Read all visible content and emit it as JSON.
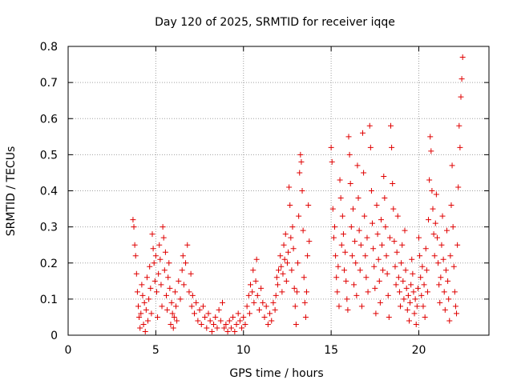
{
  "chart_data": {
    "type": "scatter",
    "title": "Day 120 of 2025, SRMTID for receiver iqqe",
    "xlabel": "GPS time / hours",
    "ylabel": "SRMTID / TECUs",
    "xlim": [
      0,
      24
    ],
    "ylim": [
      0,
      0.8
    ],
    "xticks": [
      0,
      5,
      10,
      15,
      20
    ],
    "yticks": [
      0,
      0.1,
      0.2,
      0.3,
      0.4,
      0.5,
      0.6,
      0.7,
      0.8
    ],
    "xtick_labels": [
      "0",
      "5",
      "10",
      "15",
      "20"
    ],
    "ytick_labels": [
      "0",
      "0.1",
      "0.2",
      "0.3",
      "0.4",
      "0.5",
      "0.6",
      "0.7",
      "0.8"
    ],
    "grid": true,
    "marker": "+",
    "color": "#e00000",
    "series": [
      {
        "name": "SRMTID",
        "points": [
          [
            3.7,
            0.32
          ],
          [
            3.75,
            0.3
          ],
          [
            3.8,
            0.25
          ],
          [
            3.85,
            0.22
          ],
          [
            3.9,
            0.17
          ],
          [
            3.95,
            0.12
          ],
          [
            4.0,
            0.08
          ],
          [
            4.05,
            0.05
          ],
          [
            4.1,
            0.02
          ],
          [
            4.15,
            0.06
          ],
          [
            4.2,
            0.14
          ],
          [
            4.25,
            0.11
          ],
          [
            4.3,
            0.03
          ],
          [
            4.35,
            0.09
          ],
          [
            4.4,
            0.01
          ],
          [
            4.45,
            0.07
          ],
          [
            4.5,
            0.16
          ],
          [
            4.55,
            0.04
          ],
          [
            4.6,
            0.1
          ],
          [
            4.65,
            0.19
          ],
          [
            4.7,
            0.13
          ],
          [
            4.75,
            0.06
          ],
          [
            4.8,
            0.28
          ],
          [
            4.85,
            0.24
          ],
          [
            4.9,
            0.2
          ],
          [
            4.95,
            0.15
          ],
          [
            5.0,
            0.22
          ],
          [
            5.05,
            0.12
          ],
          [
            5.1,
            0.05
          ],
          [
            5.15,
            0.17
          ],
          [
            5.2,
            0.25
          ],
          [
            5.25,
            0.21
          ],
          [
            5.3,
            0.14
          ],
          [
            5.35,
            0.08
          ],
          [
            5.4,
            0.3
          ],
          [
            5.45,
            0.27
          ],
          [
            5.5,
            0.18
          ],
          [
            5.55,
            0.23
          ],
          [
            5.6,
            0.11
          ],
          [
            5.65,
            0.07
          ],
          [
            5.7,
            0.16
          ],
          [
            5.75,
            0.2
          ],
          [
            5.8,
            0.13
          ],
          [
            5.85,
            0.03
          ],
          [
            5.9,
            0.09
          ],
          [
            5.95,
            0.06
          ],
          [
            6.0,
            0.02
          ],
          [
            6.05,
            0.05
          ],
          [
            6.1,
            0.12
          ],
          [
            6.15,
            0.08
          ],
          [
            6.2,
            0.04
          ],
          [
            6.3,
            0.15
          ],
          [
            6.4,
            0.1
          ],
          [
            6.5,
            0.18
          ],
          [
            6.55,
            0.22
          ],
          [
            6.6,
            0.14
          ],
          [
            6.7,
            0.2
          ],
          [
            6.8,
            0.25
          ],
          [
            6.9,
            0.12
          ],
          [
            7.0,
            0.17
          ],
          [
            7.05,
            0.08
          ],
          [
            7.1,
            0.11
          ],
          [
            7.2,
            0.06
          ],
          [
            7.3,
            0.09
          ],
          [
            7.4,
            0.04
          ],
          [
            7.5,
            0.07
          ],
          [
            7.6,
            0.03
          ],
          [
            7.7,
            0.08
          ],
          [
            7.8,
            0.05
          ],
          [
            7.9,
            0.02
          ],
          [
            8.0,
            0.06
          ],
          [
            8.1,
            0.04
          ],
          [
            8.2,
            0.01
          ],
          [
            8.3,
            0.03
          ],
          [
            8.4,
            0.05
          ],
          [
            8.5,
            0.02
          ],
          [
            8.6,
            0.07
          ],
          [
            8.7,
            0.04
          ],
          [
            8.8,
            0.09
          ],
          [
            8.9,
            0.02
          ],
          [
            9.0,
            0.03
          ],
          [
            9.1,
            0.01
          ],
          [
            9.2,
            0.04
          ],
          [
            9.3,
            0.02
          ],
          [
            9.4,
            0.05
          ],
          [
            9.5,
            0.01
          ],
          [
            9.6,
            0.03
          ],
          [
            9.7,
            0.06
          ],
          [
            9.8,
            0.04
          ],
          [
            9.9,
            0.02
          ],
          [
            10.0,
            0.05
          ],
          [
            10.1,
            0.03
          ],
          [
            10.2,
            0.08
          ],
          [
            10.3,
            0.11
          ],
          [
            10.35,
            0.06
          ],
          [
            10.4,
            0.14
          ],
          [
            10.5,
            0.12
          ],
          [
            10.55,
            0.18
          ],
          [
            10.6,
            0.09
          ],
          [
            10.7,
            0.15
          ],
          [
            10.75,
            0.21
          ],
          [
            10.8,
            0.11
          ],
          [
            10.9,
            0.07
          ],
          [
            11.0,
            0.13
          ],
          [
            11.1,
            0.09
          ],
          [
            11.2,
            0.05
          ],
          [
            11.3,
            0.08
          ],
          [
            11.4,
            0.03
          ],
          [
            11.5,
            0.06
          ],
          [
            11.6,
            0.04
          ],
          [
            11.7,
            0.09
          ],
          [
            11.8,
            0.07
          ],
          [
            11.85,
            0.11
          ],
          [
            11.9,
            0.16
          ],
          [
            11.95,
            0.14
          ],
          [
            12.0,
            0.18
          ],
          [
            12.1,
            0.22
          ],
          [
            12.15,
            0.19
          ],
          [
            12.2,
            0.12
          ],
          [
            12.25,
            0.17
          ],
          [
            12.3,
            0.25
          ],
          [
            12.35,
            0.21
          ],
          [
            12.4,
            0.28
          ],
          [
            12.45,
            0.15
          ],
          [
            12.5,
            0.2
          ],
          [
            12.55,
            0.23
          ],
          [
            12.6,
            0.41
          ],
          [
            12.65,
            0.36
          ],
          [
            12.7,
            0.27
          ],
          [
            12.75,
            0.18
          ],
          [
            12.8,
            0.3
          ],
          [
            12.85,
            0.24
          ],
          [
            12.9,
            0.13
          ],
          [
            12.95,
            0.08
          ],
          [
            13.0,
            0.03
          ],
          [
            13.05,
            0.12
          ],
          [
            13.1,
            0.2
          ],
          [
            13.15,
            0.33
          ],
          [
            13.2,
            0.45
          ],
          [
            13.25,
            0.5
          ],
          [
            13.3,
            0.48
          ],
          [
            13.35,
            0.4
          ],
          [
            13.4,
            0.29
          ],
          [
            13.45,
            0.16
          ],
          [
            13.5,
            0.09
          ],
          [
            13.55,
            0.05
          ],
          [
            13.6,
            0.12
          ],
          [
            13.65,
            0.22
          ],
          [
            13.7,
            0.36
          ],
          [
            13.75,
            0.26
          ],
          [
            15.0,
            0.52
          ],
          [
            15.05,
            0.48
          ],
          [
            15.1,
            0.35
          ],
          [
            15.15,
            0.27
          ],
          [
            15.2,
            0.3
          ],
          [
            15.25,
            0.22
          ],
          [
            15.3,
            0.16
          ],
          [
            15.35,
            0.12
          ],
          [
            15.4,
            0.19
          ],
          [
            15.45,
            0.08
          ],
          [
            15.5,
            0.43
          ],
          [
            15.55,
            0.38
          ],
          [
            15.6,
            0.25
          ],
          [
            15.65,
            0.33
          ],
          [
            15.7,
            0.28
          ],
          [
            15.75,
            0.18
          ],
          [
            15.8,
            0.23
          ],
          [
            15.85,
            0.15
          ],
          [
            15.9,
            0.1
          ],
          [
            15.95,
            0.07
          ],
          [
            16.0,
            0.55
          ],
          [
            16.05,
            0.5
          ],
          [
            16.1,
            0.42
          ],
          [
            16.15,
            0.3
          ],
          [
            16.2,
            0.22
          ],
          [
            16.25,
            0.35
          ],
          [
            16.3,
            0.14
          ],
          [
            16.35,
            0.26
          ],
          [
            16.4,
            0.2
          ],
          [
            16.45,
            0.11
          ],
          [
            16.5,
            0.47
          ],
          [
            16.55,
            0.38
          ],
          [
            16.6,
            0.29
          ],
          [
            16.65,
            0.18
          ],
          [
            16.7,
            0.25
          ],
          [
            16.75,
            0.08
          ],
          [
            16.8,
            0.56
          ],
          [
            16.85,
            0.45
          ],
          [
            16.9,
            0.33
          ],
          [
            16.95,
            0.22
          ],
          [
            17.0,
            0.16
          ],
          [
            17.05,
            0.27
          ],
          [
            17.1,
            0.12
          ],
          [
            17.2,
            0.58
          ],
          [
            17.25,
            0.52
          ],
          [
            17.3,
            0.4
          ],
          [
            17.35,
            0.31
          ],
          [
            17.4,
            0.24
          ],
          [
            17.45,
            0.19
          ],
          [
            17.5,
            0.13
          ],
          [
            17.55,
            0.06
          ],
          [
            17.6,
            0.36
          ],
          [
            17.65,
            0.28
          ],
          [
            17.7,
            0.21
          ],
          [
            17.75,
            0.15
          ],
          [
            17.8,
            0.09
          ],
          [
            17.85,
            0.32
          ],
          [
            17.9,
            0.25
          ],
          [
            17.95,
            0.18
          ],
          [
            18.0,
            0.44
          ],
          [
            18.05,
            0.38
          ],
          [
            18.1,
            0.3
          ],
          [
            18.15,
            0.22
          ],
          [
            18.2,
            0.17
          ],
          [
            18.25,
            0.11
          ],
          [
            18.3,
            0.05
          ],
          [
            18.35,
            0.27
          ],
          [
            18.4,
            0.58
          ],
          [
            18.45,
            0.52
          ],
          [
            18.5,
            0.42
          ],
          [
            18.55,
            0.35
          ],
          [
            18.6,
            0.26
          ],
          [
            18.65,
            0.19
          ],
          [
            18.7,
            0.14
          ],
          [
            18.75,
            0.23
          ],
          [
            18.8,
            0.33
          ],
          [
            18.85,
            0.16
          ],
          [
            18.9,
            0.12
          ],
          [
            18.95,
            0.08
          ],
          [
            19.0,
            0.2
          ],
          [
            19.05,
            0.25
          ],
          [
            19.1,
            0.15
          ],
          [
            19.15,
            0.1
          ],
          [
            19.2,
            0.29
          ],
          [
            19.25,
            0.18
          ],
          [
            19.3,
            0.13
          ],
          [
            19.35,
            0.07
          ],
          [
            19.4,
            0.11
          ],
          [
            19.45,
            0.04
          ],
          [
            19.5,
            0.09
          ],
          [
            19.55,
            0.14
          ],
          [
            19.6,
            0.21
          ],
          [
            19.65,
            0.17
          ],
          [
            19.7,
            0.12
          ],
          [
            19.75,
            0.06
          ],
          [
            19.8,
            0.1
          ],
          [
            19.85,
            0.03
          ],
          [
            19.9,
            0.08
          ],
          [
            19.95,
            0.13
          ],
          [
            20.0,
            0.27
          ],
          [
            20.05,
            0.22
          ],
          [
            20.1,
            0.16
          ],
          [
            20.15,
            0.11
          ],
          [
            20.2,
            0.19
          ],
          [
            20.25,
            0.08
          ],
          [
            20.3,
            0.14
          ],
          [
            20.35,
            0.05
          ],
          [
            20.4,
            0.24
          ],
          [
            20.45,
            0.18
          ],
          [
            20.5,
            0.12
          ],
          [
            20.55,
            0.32
          ],
          [
            20.6,
            0.43
          ],
          [
            20.65,
            0.55
          ],
          [
            20.7,
            0.51
          ],
          [
            20.75,
            0.4
          ],
          [
            20.8,
            0.35
          ],
          [
            20.85,
            0.28
          ],
          [
            20.9,
            0.22
          ],
          [
            20.95,
            0.31
          ],
          [
            21.0,
            0.39
          ],
          [
            21.05,
            0.27
          ],
          [
            21.1,
            0.2
          ],
          [
            21.15,
            0.14
          ],
          [
            21.2,
            0.09
          ],
          [
            21.25,
            0.16
          ],
          [
            21.3,
            0.25
          ],
          [
            21.35,
            0.33
          ],
          [
            21.4,
            0.21
          ],
          [
            21.45,
            0.12
          ],
          [
            21.5,
            0.07
          ],
          [
            21.55,
            0.18
          ],
          [
            21.6,
            0.29
          ],
          [
            21.65,
            0.15
          ],
          [
            21.7,
            0.1
          ],
          [
            21.75,
            0.04
          ],
          [
            21.8,
            0.22
          ],
          [
            21.85,
            0.36
          ],
          [
            21.9,
            0.47
          ],
          [
            21.95,
            0.3
          ],
          [
            22.0,
            0.19
          ],
          [
            22.05,
            0.12
          ],
          [
            22.1,
            0.08
          ],
          [
            22.15,
            0.06
          ],
          [
            22.2,
            0.25
          ],
          [
            22.25,
            0.41
          ],
          [
            22.3,
            0.58
          ],
          [
            22.35,
            0.52
          ],
          [
            22.4,
            0.66
          ],
          [
            22.45,
            0.71
          ],
          [
            22.5,
            0.77
          ]
        ]
      }
    ]
  }
}
